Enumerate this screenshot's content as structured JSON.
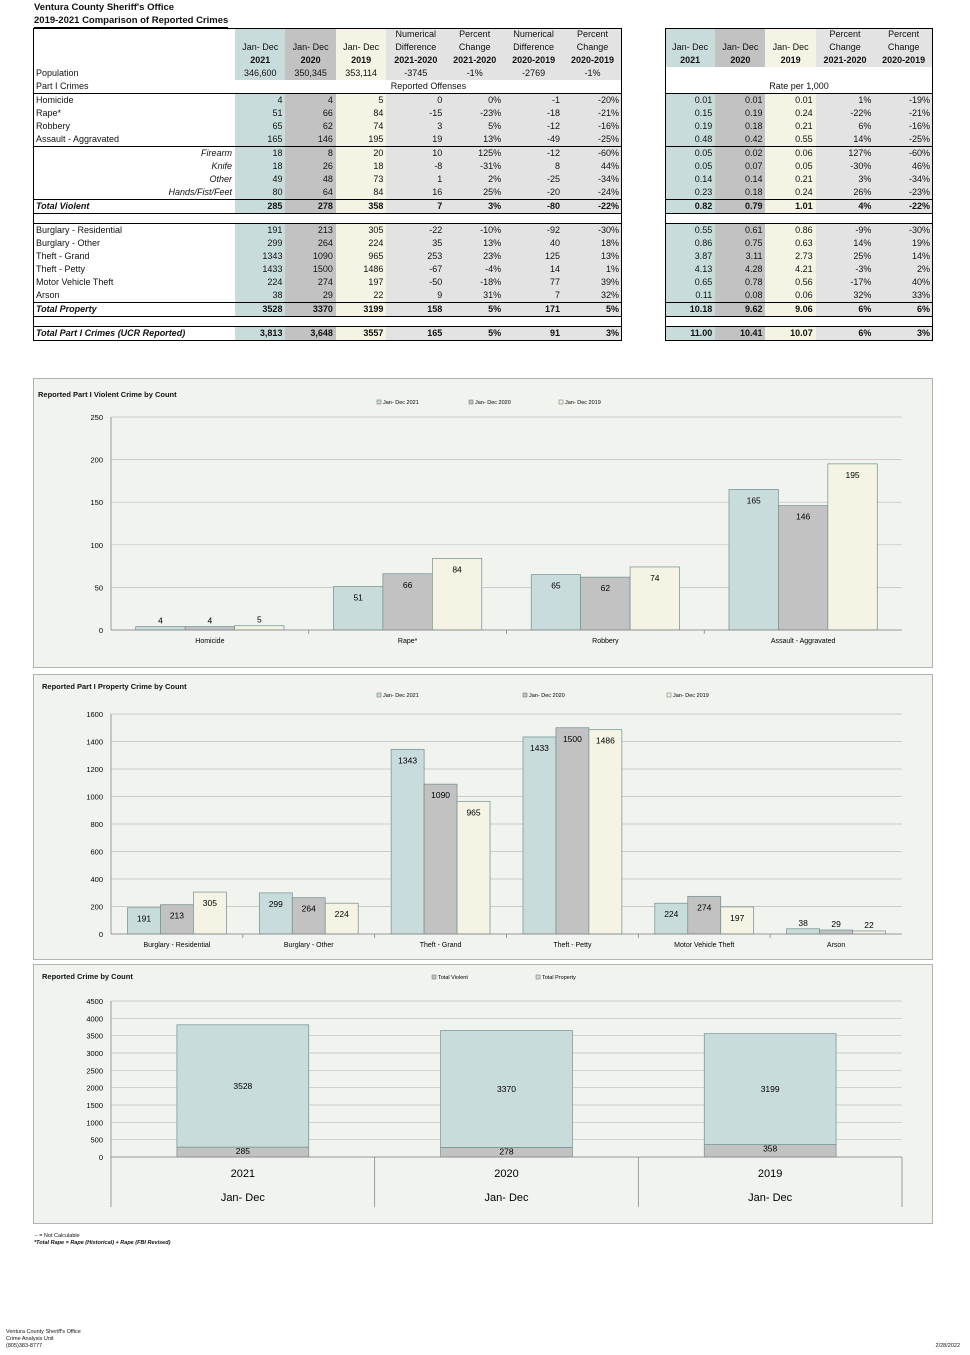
{
  "header": {
    "org": "Ventura County Sheriff's Office",
    "subtitle": "2019-2021 Comparison of Reported Crimes"
  },
  "table": {
    "col_headers": [
      [
        "Jan- Dec",
        "2021"
      ],
      [
        "Jan- Dec",
        "2020"
      ],
      [
        "Jan- Dec",
        "2019"
      ],
      [
        "Numerical",
        "Difference",
        "2021-2020"
      ],
      [
        "Percent",
        "Change",
        "2021-2020"
      ],
      [
        "Numerical",
        "Difference",
        "2020-2019"
      ],
      [
        "Percent",
        "Change",
        "2020-2019"
      ]
    ],
    "rate_headers": [
      [
        "Jan- Dec",
        "2021"
      ],
      [
        "Jan- Dec",
        "2020"
      ],
      [
        "Jan- Dec",
        "2019"
      ],
      [
        "Percent",
        "Change",
        "2021-2020"
      ],
      [
        "Percent",
        "Change",
        "2020-2019"
      ]
    ],
    "population": {
      "label": "Population",
      "values": [
        "346,600",
        "350,345",
        "353,114",
        "-3745",
        "-1%",
        "-2769",
        "-1%"
      ]
    },
    "part1_label": "Part I Crimes",
    "reported_label": "Reported Offenses",
    "rate_label": "Rate per 1,000",
    "violent": [
      {
        "label": "Homicide",
        "values": [
          "4",
          "4",
          "5",
          "0",
          "0%",
          "-1",
          "-20%"
        ],
        "rates": [
          "0.01",
          "0.01",
          "0.01",
          "1%",
          "-19%"
        ]
      },
      {
        "label": "Rape*",
        "values": [
          "51",
          "66",
          "84",
          "-15",
          "-23%",
          "-18",
          "-21%"
        ],
        "rates": [
          "0.15",
          "0.19",
          "0.24",
          "-22%",
          "-21%"
        ]
      },
      {
        "label": "Robbery",
        "values": [
          "65",
          "62",
          "74",
          "3",
          "5%",
          "-12",
          "-16%"
        ],
        "rates": [
          "0.19",
          "0.18",
          "0.21",
          "6%",
          "-16%"
        ]
      },
      {
        "label": "Assault - Aggravated",
        "values": [
          "165",
          "146",
          "195",
          "19",
          "13%",
          "-49",
          "-25%"
        ],
        "rates": [
          "0.48",
          "0.42",
          "0.55",
          "14%",
          "-25%"
        ]
      }
    ],
    "weapons": [
      {
        "label": "Firearm",
        "values": [
          "18",
          "8",
          "20",
          "10",
          "125%",
          "-12",
          "-60%"
        ],
        "rates": [
          "0.05",
          "0.02",
          "0.06",
          "127%",
          "-60%"
        ]
      },
      {
        "label": "Knife",
        "values": [
          "18",
          "26",
          "18",
          "-8",
          "-31%",
          "8",
          "44%"
        ],
        "rates": [
          "0.05",
          "0.07",
          "0.05",
          "-30%",
          "46%"
        ]
      },
      {
        "label": "Other",
        "values": [
          "49",
          "48",
          "73",
          "1",
          "2%",
          "-25",
          "-34%"
        ],
        "rates": [
          "0.14",
          "0.14",
          "0.21",
          "3%",
          "-34%"
        ]
      },
      {
        "label": "Hands/Fist/Feet",
        "values": [
          "80",
          "64",
          "84",
          "16",
          "25%",
          "-20",
          "-24%"
        ],
        "rates": [
          "0.23",
          "0.18",
          "0.24",
          "26%",
          "-23%"
        ]
      }
    ],
    "total_violent": {
      "label": "Total Violent",
      "values": [
        "285",
        "278",
        "358",
        "7",
        "3%",
        "-80",
        "-22%"
      ],
      "rates": [
        "0.82",
        "0.79",
        "1.01",
        "4%",
        "-22%"
      ]
    },
    "property": [
      {
        "label": "Burglary - Residential",
        "values": [
          "191",
          "213",
          "305",
          "-22",
          "-10%",
          "-92",
          "-30%"
        ],
        "rates": [
          "0.55",
          "0.61",
          "0.86",
          "-9%",
          "-30%"
        ]
      },
      {
        "label": "Burglary - Other",
        "values": [
          "299",
          "264",
          "224",
          "35",
          "13%",
          "40",
          "18%"
        ],
        "rates": [
          "0.86",
          "0.75",
          "0.63",
          "14%",
          "19%"
        ]
      },
      {
        "label": "Theft - Grand",
        "values": [
          "1343",
          "1090",
          "965",
          "253",
          "23%",
          "125",
          "13%"
        ],
        "rates": [
          "3.87",
          "3.11",
          "2.73",
          "25%",
          "14%"
        ]
      },
      {
        "label": "Theft - Petty",
        "values": [
          "1433",
          "1500",
          "1486",
          "-67",
          "-4%",
          "14",
          "1%"
        ],
        "rates": [
          "4.13",
          "4.28",
          "4.21",
          "-3%",
          "2%"
        ]
      },
      {
        "label": "Motor Vehicle Theft",
        "values": [
          "224",
          "274",
          "197",
          "-50",
          "-18%",
          "77",
          "39%"
        ],
        "rates": [
          "0.65",
          "0.78",
          "0.56",
          "-17%",
          "40%"
        ]
      },
      {
        "label": "Arson",
        "values": [
          "38",
          "29",
          "22",
          "9",
          "31%",
          "7",
          "32%"
        ],
        "rates": [
          "0.11",
          "0.08",
          "0.06",
          "32%",
          "33%"
        ]
      }
    ],
    "total_property": {
      "label": "Total Property",
      "values": [
        "3528",
        "3370",
        "3199",
        "158",
        "5%",
        "171",
        "5%"
      ],
      "rates": [
        "10.18",
        "9.62",
        "9.06",
        "6%",
        "6%"
      ]
    },
    "total_part1": {
      "label": "Total Part I Crimes  (UCR Reported)",
      "values": [
        "3,813",
        "3,648",
        "3557",
        "165",
        "5%",
        "91",
        "3%"
      ],
      "rates": [
        "11.00",
        "10.41",
        "10.07",
        "6%",
        "3%"
      ]
    }
  },
  "colors": {
    "y2021": "#c9dcdc",
    "y2020": "#c2c2c2",
    "y2019": "#f5f3e4",
    "diff": "#e3e3e3",
    "panel": "#f1f3ee",
    "grid": "#bfbfbf"
  },
  "chart_data": [
    {
      "type": "bar",
      "title": "Reported Part I Violent Crime by Count",
      "categories": [
        "Homicide",
        "Rape*",
        "Robbery",
        "Assault - Aggravated"
      ],
      "series": [
        {
          "name": "Jan- Dec  2021",
          "values": [
            4,
            51,
            65,
            165
          ]
        },
        {
          "name": "Jan- Dec 2020",
          "values": [
            4,
            66,
            62,
            146
          ]
        },
        {
          "name": "Jan- Dec 2019",
          "values": [
            5,
            84,
            74,
            195
          ]
        }
      ],
      "ylim": [
        0,
        250
      ],
      "yticks": [
        0,
        50,
        100,
        150,
        200,
        250
      ],
      "grid": true,
      "legend": "top"
    },
    {
      "type": "bar",
      "title": "Reported Part I Property Crime by Count",
      "categories": [
        "Burglary - Residential",
        "Burglary - Other",
        "Theft - Grand",
        "Theft - Petty",
        "Motor Vehicle Theft",
        "Arson"
      ],
      "series": [
        {
          "name": "Jan- Dec  2021",
          "values": [
            191,
            299,
            1343,
            1433,
            224,
            38
          ]
        },
        {
          "name": "Jan- Dec 2020",
          "values": [
            213,
            264,
            1090,
            1500,
            274,
            29
          ]
        },
        {
          "name": "Jan- Dec 2019",
          "values": [
            305,
            224,
            965,
            1486,
            197,
            22
          ]
        }
      ],
      "ylim": [
        0,
        1600
      ],
      "yticks": [
        0,
        200,
        400,
        600,
        800,
        1000,
        1200,
        1400,
        1600
      ],
      "grid": true,
      "legend": "top"
    },
    {
      "type": "bar",
      "stacked": true,
      "title": "Reported Crime by Count",
      "categories": [
        "2021",
        "2020",
        "2019"
      ],
      "category_sublabel": "Jan- Dec",
      "series": [
        {
          "name": "Total Violent",
          "values": [
            285,
            278,
            358
          ]
        },
        {
          "name": "Total Property",
          "values": [
            3528,
            3370,
            3199
          ]
        }
      ],
      "ylim": [
        0,
        4500
      ],
      "yticks": [
        0,
        500,
        1000,
        1500,
        2000,
        2500,
        3000,
        3500,
        4000,
        4500
      ],
      "grid": true,
      "legend": "top"
    }
  ],
  "footnotes": {
    "line1": "-- = Not Calculable",
    "line2": "*Total Rape = Rape (Historical) + Rape (FBI Revised)"
  },
  "footer": {
    "org": "Ventura County Sheriff's Office",
    "unit": "Crime Analysis Unit",
    "phone": "(805)383-8777",
    "date": "2/28/2022"
  }
}
